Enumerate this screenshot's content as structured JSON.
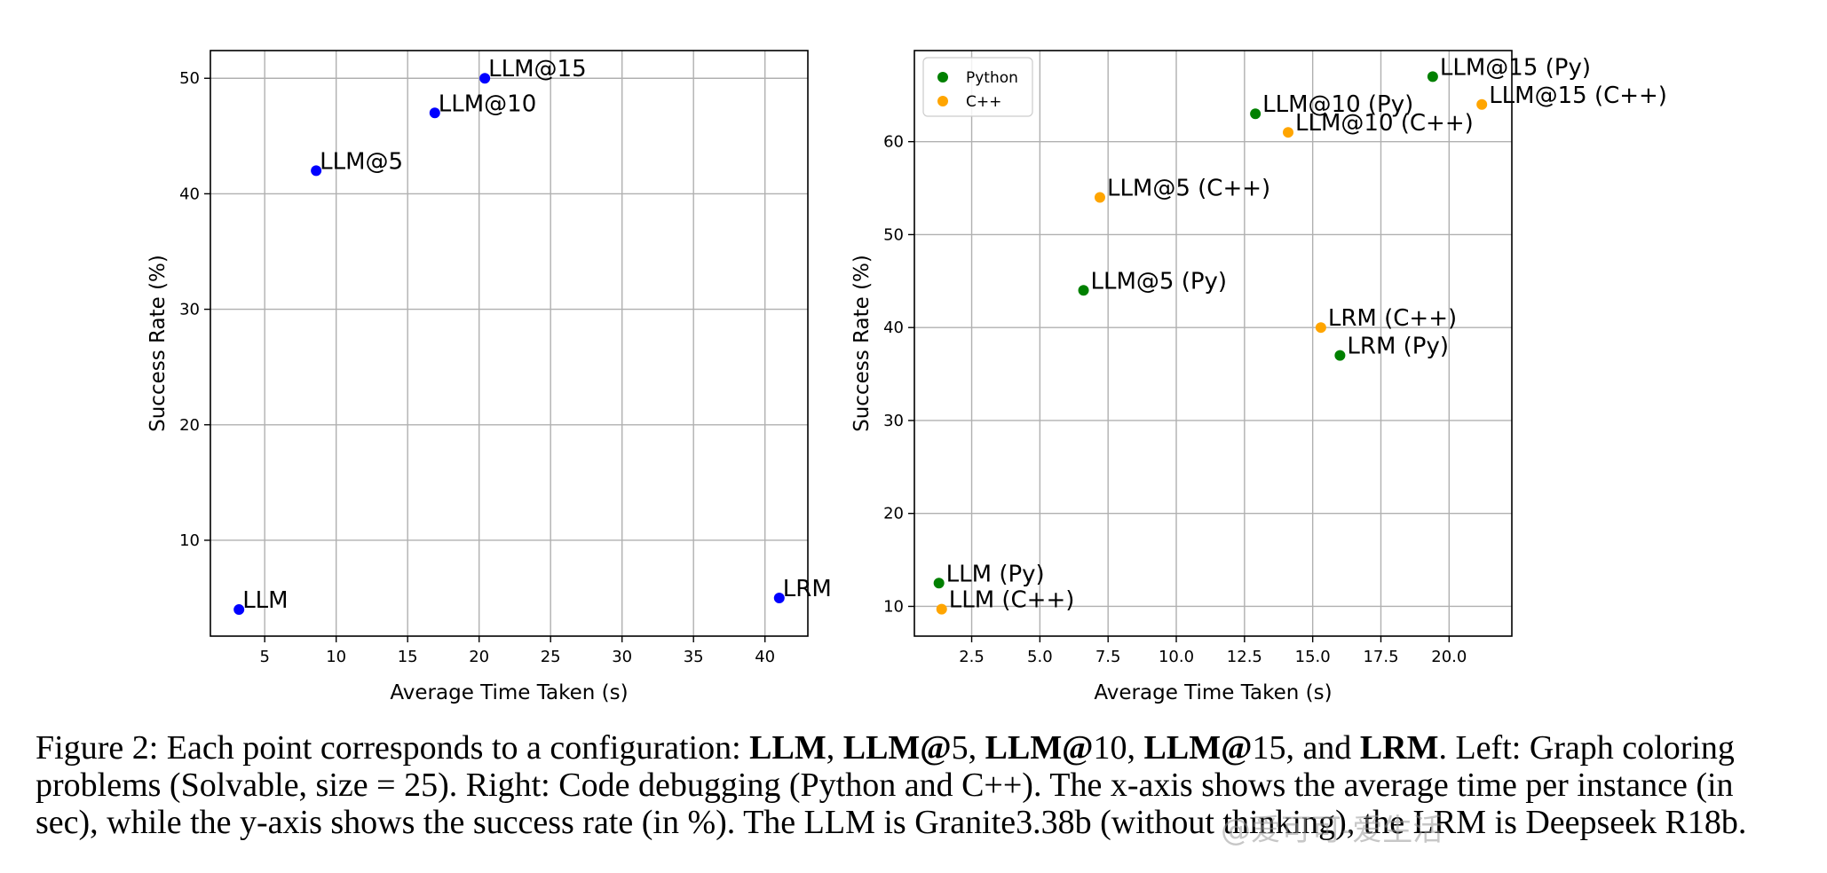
{
  "chart_data": [
    {
      "type": "scatter",
      "xlabel": "Average Time Taken (s)",
      "ylabel": "Success Rate (%)",
      "xlim": [
        1.2,
        43
      ],
      "ylim": [
        1.7,
        52.4
      ],
      "xticks": [
        5,
        10,
        15,
        20,
        25,
        30,
        35,
        40
      ],
      "xtick_labels": [
        "5",
        "10",
        "15",
        "20",
        "25",
        "30",
        "35",
        "40"
      ],
      "yticks": [
        10,
        20,
        30,
        40,
        50
      ],
      "ytick_labels": [
        "10",
        "20",
        "30",
        "40",
        "50"
      ],
      "grid": true,
      "series": [
        {
          "color": "#0000ff",
          "points": [
            {
              "label": "LLM",
              "x": 3.2,
              "y": 4
            },
            {
              "label": "LLM@5",
              "x": 8.6,
              "y": 42
            },
            {
              "label": "LLM@10",
              "x": 16.9,
              "y": 47
            },
            {
              "label": "LLM@15",
              "x": 20.4,
              "y": 50
            },
            {
              "label": "LRM",
              "x": 41.0,
              "y": 5
            }
          ]
        }
      ]
    },
    {
      "type": "scatter",
      "xlabel": "Average Time Taken (s)",
      "ylabel": "Success Rate (%)",
      "xlim": [
        0.4,
        22.3
      ],
      "ylim": [
        6.8,
        69.8
      ],
      "xticks": [
        2.5,
        5.0,
        7.5,
        10.0,
        12.5,
        15.0,
        17.5,
        20.0
      ],
      "xtick_labels": [
        "2.5",
        "5.0",
        "7.5",
        "10.0",
        "12.5",
        "15.0",
        "17.5",
        "20.0"
      ],
      "yticks": [
        10,
        20,
        30,
        40,
        50,
        60
      ],
      "ytick_labels": [
        "10",
        "20",
        "30",
        "40",
        "50",
        "60"
      ],
      "grid": true,
      "legend_position": "top-left",
      "series": [
        {
          "name": "Python",
          "color": "#008000",
          "points": [
            {
              "label": "LLM (Py)",
              "x": 1.3,
              "y": 12.5
            },
            {
              "label": "LLM@5 (Py)",
              "x": 6.6,
              "y": 44
            },
            {
              "label": "LLM@10 (Py)",
              "x": 12.9,
              "y": 63
            },
            {
              "label": "LLM@15 (Py)",
              "x": 19.4,
              "y": 67
            },
            {
              "label": "LRM (Py)",
              "x": 16.0,
              "y": 37
            }
          ]
        },
        {
          "name": "C++",
          "color": "#ffa500",
          "points": [
            {
              "label": "LLM (C++)",
              "x": 1.4,
              "y": 9.7
            },
            {
              "label": "LLM@5 (C++)",
              "x": 7.2,
              "y": 54
            },
            {
              "label": "LLM@10 (C++)",
              "x": 14.1,
              "y": 61
            },
            {
              "label": "LLM@15 (C++)",
              "x": 21.2,
              "y": 64
            },
            {
              "label": "LRM (C++)",
              "x": 15.3,
              "y": 40
            }
          ]
        }
      ]
    }
  ],
  "caption": {
    "line1": [
      {
        "text": "Figure 2: Each point corresponds to a configuration: ",
        "bold": false
      },
      {
        "text": "LLM",
        "bold": true
      },
      {
        "text": ", ",
        "bold": false
      },
      {
        "text": "LLM@",
        "bold": true
      },
      {
        "text": "5, ",
        "bold": false
      },
      {
        "text": "LLM@",
        "bold": true
      },
      {
        "text": "10, ",
        "bold": false
      },
      {
        "text": "LLM@",
        "bold": true
      },
      {
        "text": "15, and ",
        "bold": false
      },
      {
        "text": "LRM",
        "bold": true
      },
      {
        "text": ". Left: Graph coloring",
        "bold": false
      }
    ],
    "line2": "problems (Solvable, size = 25). Right: Code debugging (Python and C++). The x-axis shows the average time per instance (in",
    "line3": "sec), while the y-axis shows the success rate (in %). The LLM is Granite3.38b (without thinking), the LRM is Deepseek R18b."
  },
  "watermark": "@爱可可-爱生活"
}
